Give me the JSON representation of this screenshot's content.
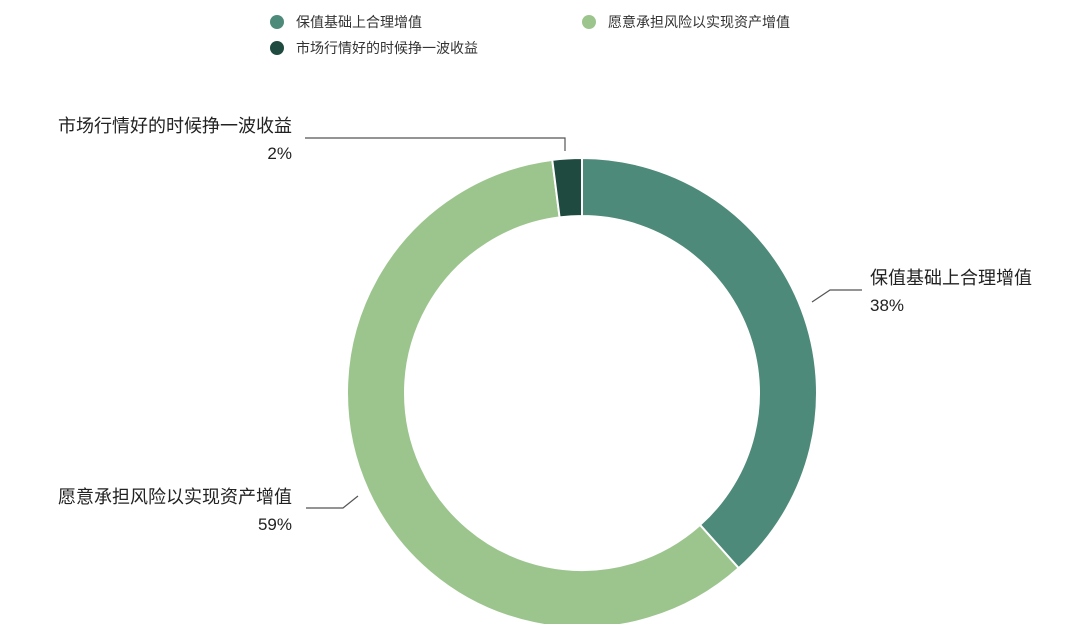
{
  "chart_data": {
    "type": "pie",
    "style": "donut",
    "legend_position": "top",
    "categories": [
      "保值基础上合理增值",
      "愿意承担风险以实现资产增值",
      "市场行情好的时候挣一波收益"
    ],
    "values": [
      38,
      59,
      2
    ],
    "value_labels": [
      "38%",
      "59%",
      "2%"
    ],
    "colors": [
      "#4e8a79",
      "#9cc58e",
      "#1f4a40"
    ]
  }
}
